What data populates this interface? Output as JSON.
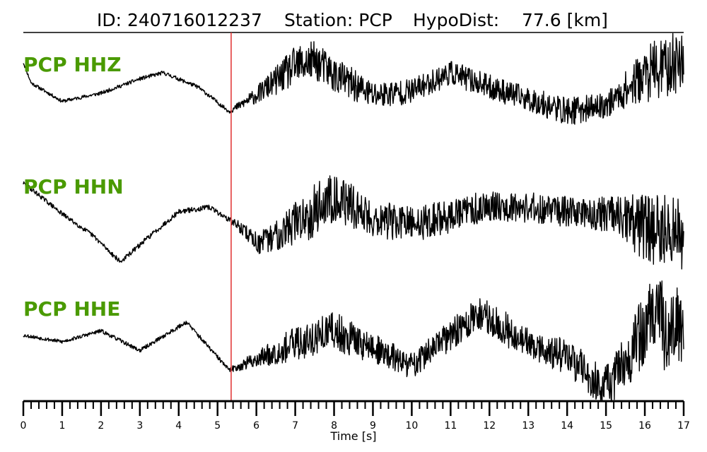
{
  "header": {
    "id_text": "ID: 240716012237",
    "station_text": "Station: PCP",
    "hypodist_text": "HypoDist:    77.6 [km]"
  },
  "colors": {
    "trace": "#000000",
    "label": "#4a9a00",
    "pick_line": "#e03030"
  },
  "chart_data": {
    "type": "line",
    "xlabel": "Time [s]",
    "xlim": [
      0,
      17
    ],
    "x_ticks": [
      0,
      1,
      2,
      3,
      4,
      5,
      6,
      7,
      8,
      9,
      10,
      11,
      12,
      13,
      14,
      15,
      16,
      17
    ],
    "x_tick_labels": [
      "0",
      "1",
      "2",
      "3",
      "4",
      "5",
      "6",
      "7",
      "8",
      "9",
      "10",
      "11",
      "12",
      "13",
      "14",
      "15",
      "16",
      "17"
    ],
    "minor_tick_step": 0.2,
    "pick_time": 5.35,
    "grid": false,
    "channels": [
      {
        "name": "PCP HHZ",
        "envelope_t": [
          0,
          0.2,
          1,
          2,
          3,
          3.6,
          4.5,
          5.3,
          6,
          7,
          7.5,
          8,
          9,
          10,
          11,
          12,
          13,
          14,
          15,
          16,
          16.6,
          17
        ],
        "envelope_v": [
          0.7,
          0.2,
          -0.25,
          -0.05,
          0.3,
          0.45,
          0.1,
          -0.5,
          -0.1,
          0.6,
          0.75,
          0.4,
          -0.1,
          0.0,
          0.45,
          0.1,
          -0.2,
          -0.5,
          -0.35,
          0.4,
          0.6,
          0.8
        ],
        "noise_t": [
          0,
          5.3,
          5.8,
          6.5,
          7,
          8,
          9,
          10,
          11,
          12,
          13,
          14,
          15,
          15.7,
          16.2,
          17
        ],
        "noise_a": [
          0.04,
          0.05,
          0.15,
          0.35,
          0.5,
          0.45,
          0.35,
          0.3,
          0.3,
          0.3,
          0.3,
          0.35,
          0.3,
          0.5,
          0.75,
          0.75
        ],
        "seed": 11
      },
      {
        "name": "PCP HHN",
        "envelope_t": [
          0,
          0.3,
          1,
          1.8,
          2.5,
          3.2,
          4,
          4.8,
          5.5,
          6.1,
          7,
          8,
          9,
          10,
          11,
          12,
          13,
          14,
          15,
          16,
          17
        ],
        "envelope_v": [
          0.8,
          0.6,
          0.1,
          -0.4,
          -1.0,
          -0.45,
          0.15,
          0.25,
          -0.15,
          -0.6,
          -0.1,
          0.5,
          0.0,
          -0.15,
          0.05,
          0.3,
          0.25,
          0.15,
          0.1,
          -0.2,
          -0.4
        ],
        "noise_t": [
          0,
          5.3,
          6,
          7,
          7.5,
          8,
          9,
          10,
          11,
          12,
          13,
          14,
          15,
          15.5,
          16,
          16.5,
          17
        ],
        "noise_a": [
          0.05,
          0.06,
          0.25,
          0.5,
          0.65,
          0.55,
          0.45,
          0.4,
          0.4,
          0.35,
          0.35,
          0.35,
          0.4,
          0.55,
          0.8,
          0.85,
          0.8
        ],
        "seed": 29
      },
      {
        "name": "PCP HHE",
        "envelope_t": [
          0,
          1,
          2,
          3,
          4.2,
          5.3,
          6,
          7,
          8,
          9,
          10,
          11,
          11.8,
          13,
          14,
          15,
          15.6,
          16,
          16.6,
          17
        ],
        "envelope_v": [
          0.2,
          0.05,
          0.3,
          -0.15,
          0.5,
          -0.6,
          -0.35,
          0.0,
          0.3,
          -0.1,
          -0.5,
          0.2,
          0.7,
          0.0,
          -0.3,
          -1.0,
          -0.3,
          0.4,
          0.5,
          0.2
        ],
        "noise_t": [
          0,
          5.3,
          6,
          7,
          8,
          9,
          10,
          11,
          12,
          13,
          14,
          15,
          15.5,
          16,
          16.5,
          17
        ],
        "noise_a": [
          0.04,
          0.05,
          0.2,
          0.4,
          0.45,
          0.35,
          0.3,
          0.35,
          0.45,
          0.35,
          0.4,
          0.5,
          0.6,
          0.9,
          1.1,
          1.0
        ],
        "seed": 53
      }
    ]
  }
}
